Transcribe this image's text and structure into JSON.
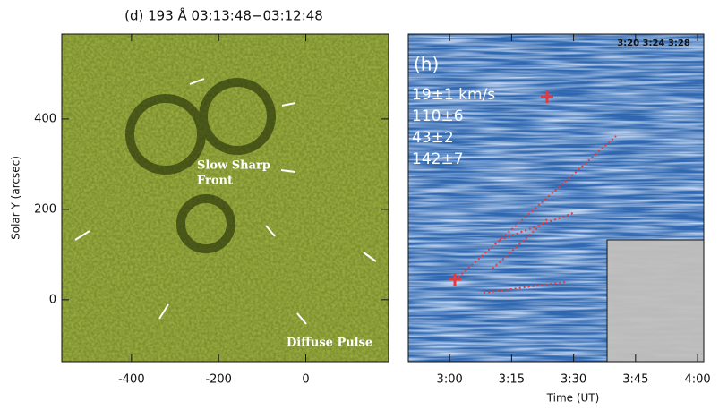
{
  "chart_data": [
    {
      "type": "image",
      "title": "(d) 193 Å 03:13:48−03:12:48",
      "y_label": "Solar Y (arcsec)",
      "xlim": [
        -560,
        190
      ],
      "ylim": [
        -137,
        588
      ],
      "xticks": [
        -400,
        -200,
        0
      ],
      "yticks": [
        0,
        200,
        400
      ],
      "annotations": [
        "Slow Sharp",
        "Front",
        "Diffuse Pulse"
      ]
    },
    {
      "type": "image",
      "panel_label": "(h)",
      "x_label": "Time (UT)",
      "inset_label": "3:20 3:24 3:28",
      "xlim": [
        170,
        241.5
      ],
      "xticks": [
        {
          "value": 180,
          "label": "3:00"
        },
        {
          "value": 195,
          "label": "3:15"
        },
        {
          "value": 210,
          "label": "3:30"
        },
        {
          "value": 225,
          "label": "3:45"
        },
        {
          "value": 240,
          "label": "4:00"
        }
      ],
      "annotations": [
        "19±1 km/s",
        "110±6",
        "43±2",
        "142±7"
      ]
    }
  ]
}
